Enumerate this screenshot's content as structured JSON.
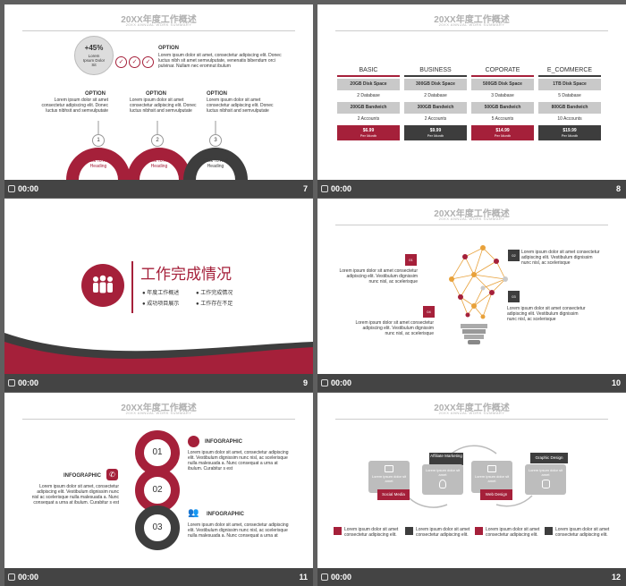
{
  "slides": {
    "s7": {
      "title": "20XX年度工作概述",
      "subtitle": "20XX ANNUAL WORK SUMMARY",
      "percent": "+45%",
      "circle_text": "Lorem Ipsum Dolor Sit",
      "option_title": "OPTION",
      "option_text": "Lorem ipsum dolor sit amet, consectetur adipiscing elit. Donec luctus nibh sit amet semvulputate, venenatis bibendum orci pulvinar. Nullam nec eromnut ibulum",
      "options": [
        {
          "title": "OPTION",
          "text": "Lorem ipsum dolor sit amet consectetur adipiscing elit. Donec luctus nibhsit and semvulputate",
          "num": "1",
          "btn": "Click To Add Heading"
        },
        {
          "title": "OPTION",
          "text": "Lorem ipsum dolor sit amet consectetur adipiscing elit. Donec luctus nibhsit and semvulputate",
          "num": "2",
          "btn": "Click To Add Heading"
        },
        {
          "title": "OPTION",
          "text": "Lorem ipsum dolor sit amet consectetur adipiscing elit. Donec luctus nibhsit and semvulputate",
          "num": "3",
          "btn": "Click To Add Heading"
        }
      ],
      "time": "00:00",
      "number": "7"
    },
    "s8": {
      "title": "20XX年度工作概述",
      "subtitle": "20XX ANNUAL WORK SUMMARY",
      "plans": [
        {
          "name": "BASIC",
          "rows": [
            "20GB Disk Space",
            "2 Database",
            "200GB Bandwich",
            "2 Accounts"
          ],
          "price": "$6.99",
          "per": "Per Month"
        },
        {
          "name": "BUSINESS",
          "rows": [
            "300GB Disk Space",
            "2 Database",
            "300GB Bandwich",
            "2 Accounts"
          ],
          "price": "$9.99",
          "per": "Per Month"
        },
        {
          "name": "COPORATE",
          "rows": [
            "500GB Disk Space",
            "3 Database",
            "500GB Bandwich",
            "5 Accounts"
          ],
          "price": "$14.99",
          "per": "Per Month"
        },
        {
          "name": "E_COMMERCE",
          "rows": [
            "1TB Disk Space",
            "5 Database",
            "800GB Bandwich",
            "10 Accounts"
          ],
          "price": "$19.99",
          "per": "Per Month"
        }
      ],
      "time": "00:00",
      "number": "8"
    },
    "s9": {
      "heading": "工作完成情况",
      "items": [
        "年度工作概述",
        "工作完成情况",
        "成功项目展示",
        "工作存在不足"
      ],
      "time": "00:00",
      "number": "9"
    },
    "s10": {
      "title": "20XX年度工作概述",
      "subtitle": "20XX ANNUAL WORK SUMMARY",
      "tags": [
        "01",
        "02",
        "03",
        "04"
      ],
      "text": "Lorem ipsum dolor sit amet consectetur adipiscing elit. Vestibulum dignissim nunc nisl, ac scelerisque",
      "time": "00:00",
      "number": "10"
    },
    "s11": {
      "title": "20XX年度工作概述",
      "subtitle": "20XX ANNUAL WORK SUMMARY",
      "nums": [
        "01",
        "02",
        "03"
      ],
      "info_label": "INFOGRAPHIC",
      "left_text": "Lorem ipsum dolor sit amet, consectetur adipiscing elit. Vestibulum dignissim nunc nisl ac scelerisque nulla malesuada a. Nunc consequat a urna at ibulum. Curabitur s est",
      "right_text": "Lorem ipsum dolor sit amet, consectetur adipiscing elit. Vestibulum dignissim nunc nisl, ac scelerisque nulla malesuada a. Nunc consequat a urna at ibulum. Curabitur s est",
      "right_text2": "Lorem ipsum dolor sit amet, consectetur adipiscing elit. Vestibulum dignissim nunc nisl, ac scelerisque nulla malesuada a. Nunc consequat a urna at",
      "time": "00:00",
      "number": "11"
    },
    "s12": {
      "title": "20XX年度工作概述",
      "subtitle": "20XX ANNUAL WORK SUMMARY",
      "labels": [
        "Social Media",
        "Affiliate Marketing",
        "Web Design",
        "Graphic Design"
      ],
      "card_text": "Lorem ipsum dolor sit amet",
      "legend_text": "Lorem ipsum dolor sit amet consectetur adipiscing elit.",
      "time": "00:00",
      "number": "12"
    }
  },
  "colors": {
    "accent": "#a5203a",
    "dark": "#3d3d3d",
    "gray": "#c9c9c9",
    "background": "#5f5f5f"
  }
}
